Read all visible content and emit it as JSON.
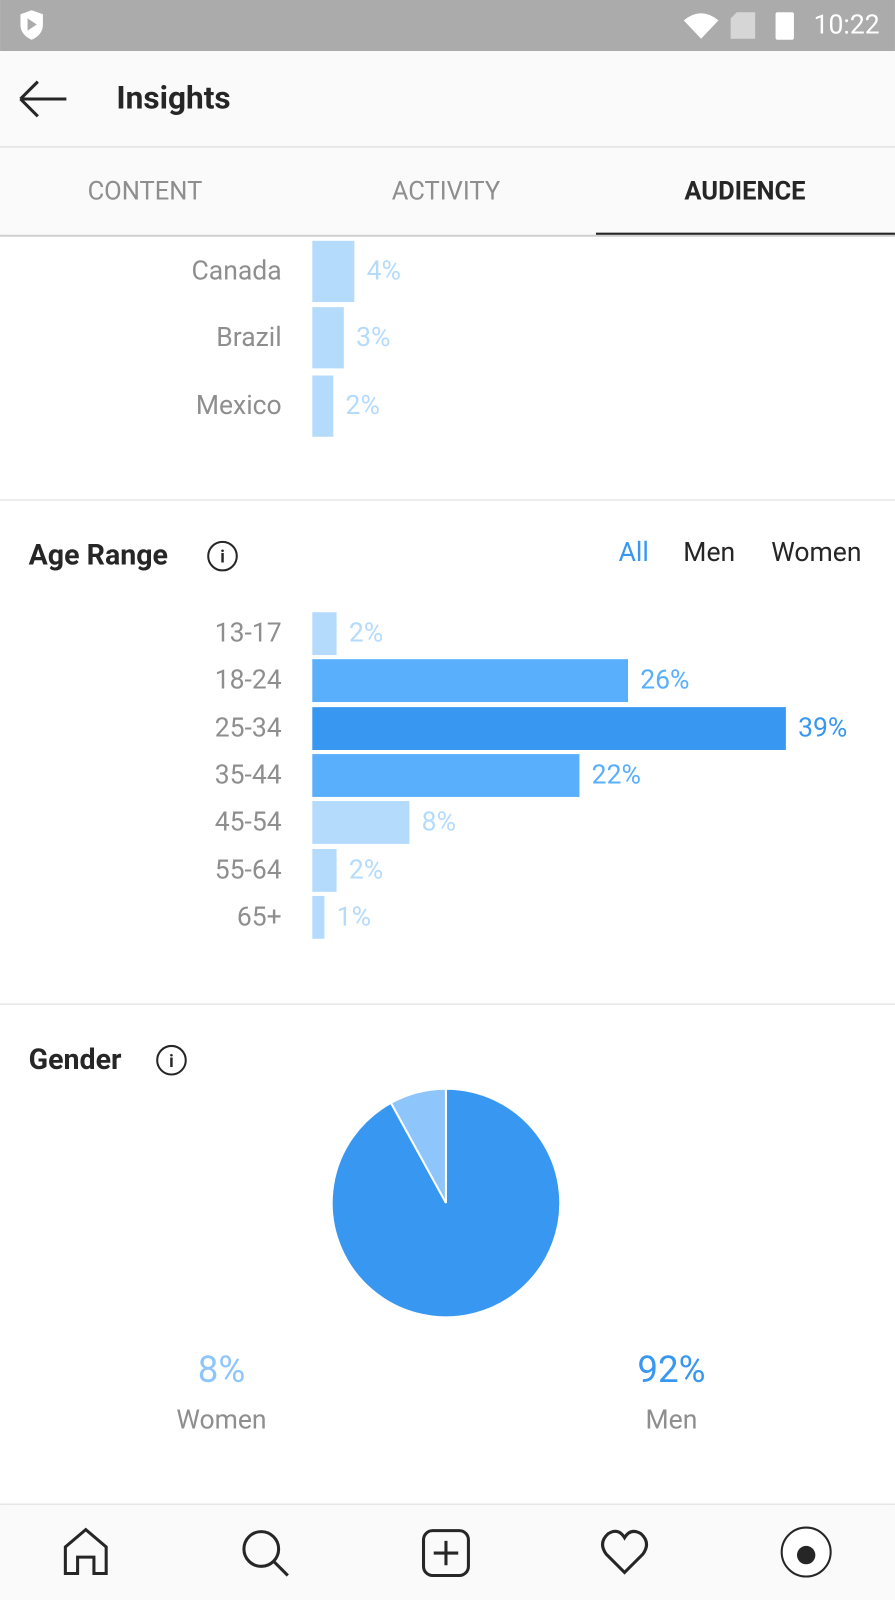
{
  "status_bar": {
    "time": "10:22"
  },
  "header": {
    "title": "Insights"
  },
  "tabs": {
    "items": [
      "CONTENT",
      "ACTIVITY",
      "AUDIENCE"
    ],
    "active": 2
  },
  "locations": {
    "type": "bar",
    "categories": [
      "Canada",
      "Brazil",
      "Mexico"
    ],
    "values": [
      4,
      3,
      2
    ],
    "value_labels": [
      "4%",
      "3%",
      "2%"
    ],
    "colors": [
      "#b5dbfc",
      "#b5dbfc",
      "#b5dbfc"
    ]
  },
  "age_range": {
    "title": "Age Range",
    "filters": [
      "All",
      "Men",
      "Women"
    ],
    "active_filter": 0,
    "chart_data": {
      "type": "bar",
      "categories": [
        "13-17",
        "18-24",
        "25-34",
        "35-44",
        "45-54",
        "55-64",
        "65+"
      ],
      "values": [
        2,
        26,
        39,
        22,
        8,
        2,
        1
      ],
      "value_labels": [
        "2%",
        "26%",
        "39%",
        "22%",
        "8%",
        "2%",
        "1%"
      ],
      "colors": [
        "#b5dbfc",
        "#5aaffc",
        "#3897f0",
        "#5aaffc",
        "#b5dbfc",
        "#b5dbfc",
        "#b5dbfc"
      ]
    }
  },
  "gender": {
    "title": "Gender",
    "chart_data": {
      "type": "pie",
      "categories": [
        "Women",
        "Men"
      ],
      "values": [
        8,
        92
      ],
      "value_labels": [
        "8%",
        "92%"
      ],
      "colors": [
        "#8ec5fb",
        "#3897f0"
      ]
    }
  }
}
